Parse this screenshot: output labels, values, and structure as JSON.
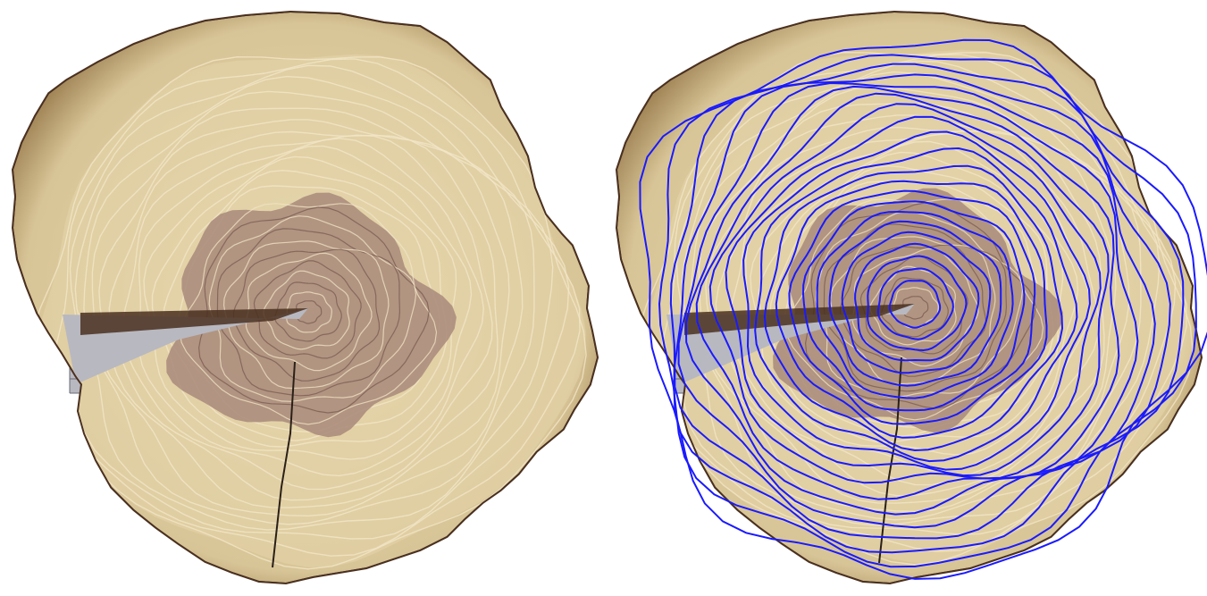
{
  "figure": {
    "panels": [
      {
        "id": "left",
        "content": "tree-cross-section-original"
      },
      {
        "id": "right",
        "content": "tree-cross-section-with-ring-annotations"
      }
    ]
  },
  "colors": {
    "background": "#ffffff",
    "sapwood": "#d8c597",
    "sapwood_light": "#e6d6ac",
    "bark_edge": "#8a6a3c",
    "bark_dark": "#4a3020",
    "heartwood": "#a88a7a",
    "heartwood_dark": "#8c6e66",
    "ring_line_light": "#f2e6c8",
    "ring_line_dark": "#7a5a50",
    "crack": "#2a2018",
    "grid_paper": "#b8b8c0",
    "grid_line": "#6a6a78",
    "annotation_blue": "#1a1aff"
  },
  "annotations": {
    "ring_count": 22,
    "color_name": "blue"
  }
}
